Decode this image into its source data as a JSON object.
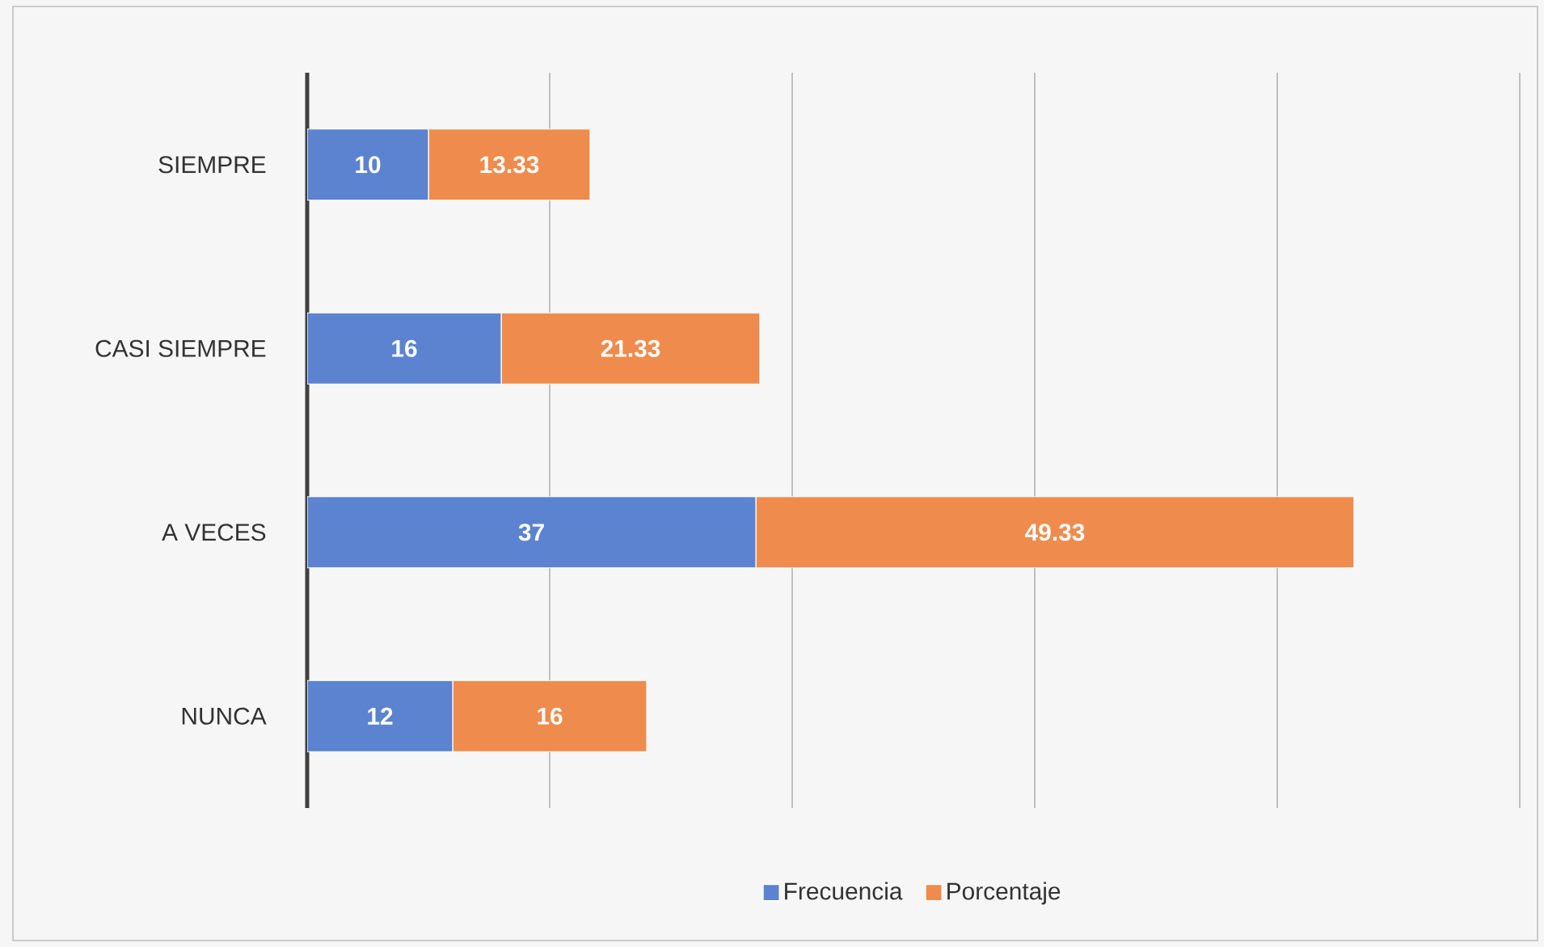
{
  "chart_data": {
    "type": "bar",
    "orientation": "horizontal",
    "stacked": true,
    "categories": [
      "SIEMPRE",
      "CASI SIEMPRE",
      "A VECES",
      "NUNCA"
    ],
    "series": [
      {
        "name": "Frecuencia",
        "color": "#5b83cf",
        "values": [
          10,
          16,
          37,
          12
        ]
      },
      {
        "name": "Porcentaje",
        "color": "#ef8b4c",
        "values": [
          13.33,
          21.33,
          49.33,
          16
        ]
      }
    ],
    "xlim": [
      0,
      100
    ],
    "xticks": [
      {
        "value": 0,
        "label": null
      },
      {
        "value": 20,
        "label": null
      },
      {
        "value": 40,
        "label": null
      },
      {
        "value": 60,
        "label": null
      },
      {
        "value": 80,
        "label": null
      },
      {
        "value": 100,
        "label": null
      }
    ],
    "grid": "x",
    "legend": "bottom",
    "tick_labels": "y",
    "data_labels": true
  }
}
